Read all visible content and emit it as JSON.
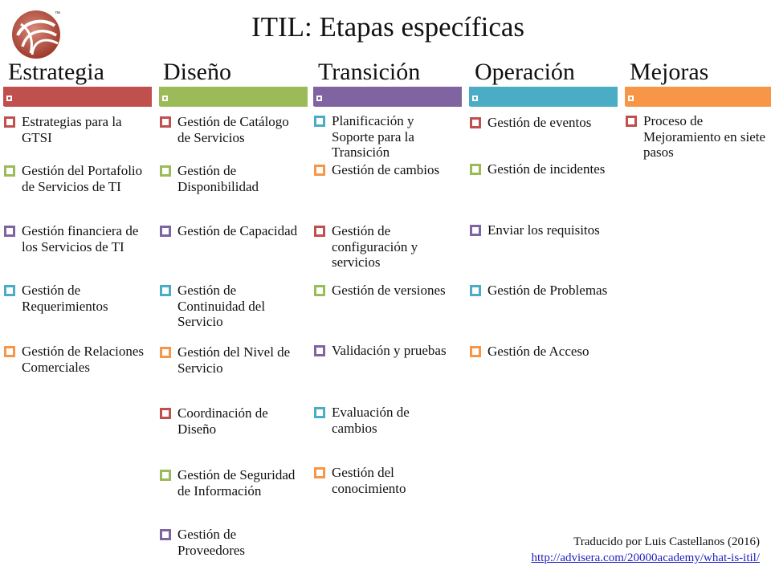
{
  "title": "ITIL: Etapas específicas",
  "logo_tm": "™",
  "stages": [
    {
      "name": "Estrategia",
      "color": "#c0504d",
      "items": [
        {
          "text": "Estrategias para la GTSI",
          "color": "#c0504d"
        },
        {
          "text": "Gestión del Portafolio de Servicios de TI",
          "color": "#9bbb59"
        },
        {
          "text": "Gestión financiera de los Servicios de TI",
          "color": "#8064a2"
        },
        {
          "text": "Gestión de Requerimientos",
          "color": "#4bacc6"
        },
        {
          "text": "Gestión de Relaciones Comerciales",
          "color": "#f79646"
        }
      ]
    },
    {
      "name": "Diseño",
      "color": "#9bbb59",
      "items": [
        {
          "text": "Gestión de Catálogo de Servicios",
          "color": "#c0504d"
        },
        {
          "text": "Gestión de Disponibilidad",
          "color": "#9bbb59"
        },
        {
          "text": "Gestión de Capacidad",
          "color": "#8064a2"
        },
        {
          "text": "Gestión de Continuidad del Servicio",
          "color": "#4bacc6"
        },
        {
          "text": "Gestión del Nivel de Servicio",
          "color": "#f79646"
        },
        {
          "text": "Coordinación de Diseño",
          "color": "#c0504d"
        },
        {
          "text": "Gestión de Seguridad de Información",
          "color": "#9bbb59"
        },
        {
          "text": "Gestión de Proveedores",
          "color": "#8064a2"
        }
      ]
    },
    {
      "name": "Transición",
      "color": "#8064a2",
      "items": [
        {
          "text": "Planificación y Soporte para la Transición",
          "color": "#4bacc6"
        },
        {
          "text": "Gestión de cambios",
          "color": "#f79646"
        },
        {
          "text": "Gestión de configuración y servicios",
          "color": "#c0504d"
        },
        {
          "text": "Gestión de versiones",
          "color": "#9bbb59"
        },
        {
          "text": "Validación y pruebas",
          "color": "#8064a2"
        },
        {
          "text": "Evaluación de cambios",
          "color": "#4bacc6"
        },
        {
          "text": "Gestión del conocimiento",
          "color": "#f79646"
        }
      ]
    },
    {
      "name": "Operación",
      "color": "#4bacc6",
      "items": [
        {
          "text": "Gestión de eventos",
          "color": "#c0504d"
        },
        {
          "text": "Gestión de incidentes",
          "color": "#9bbb59"
        },
        {
          "text": "Enviar los requisitos",
          "color": "#8064a2"
        },
        {
          "text": "Gestión de Problemas",
          "color": "#4bacc6"
        },
        {
          "text": "Gestión de Acceso",
          "color": "#f79646"
        }
      ]
    },
    {
      "name": "Mejoras",
      "color": "#f79646",
      "items": [
        {
          "text": "Proceso de Mejoramiento en siete pasos",
          "color": "#c0504d"
        }
      ]
    }
  ],
  "credit": {
    "author": "Traducido por Luis Castellanos (2016)",
    "url": "http://advisera.com/20000academy/what-is-itil/"
  }
}
